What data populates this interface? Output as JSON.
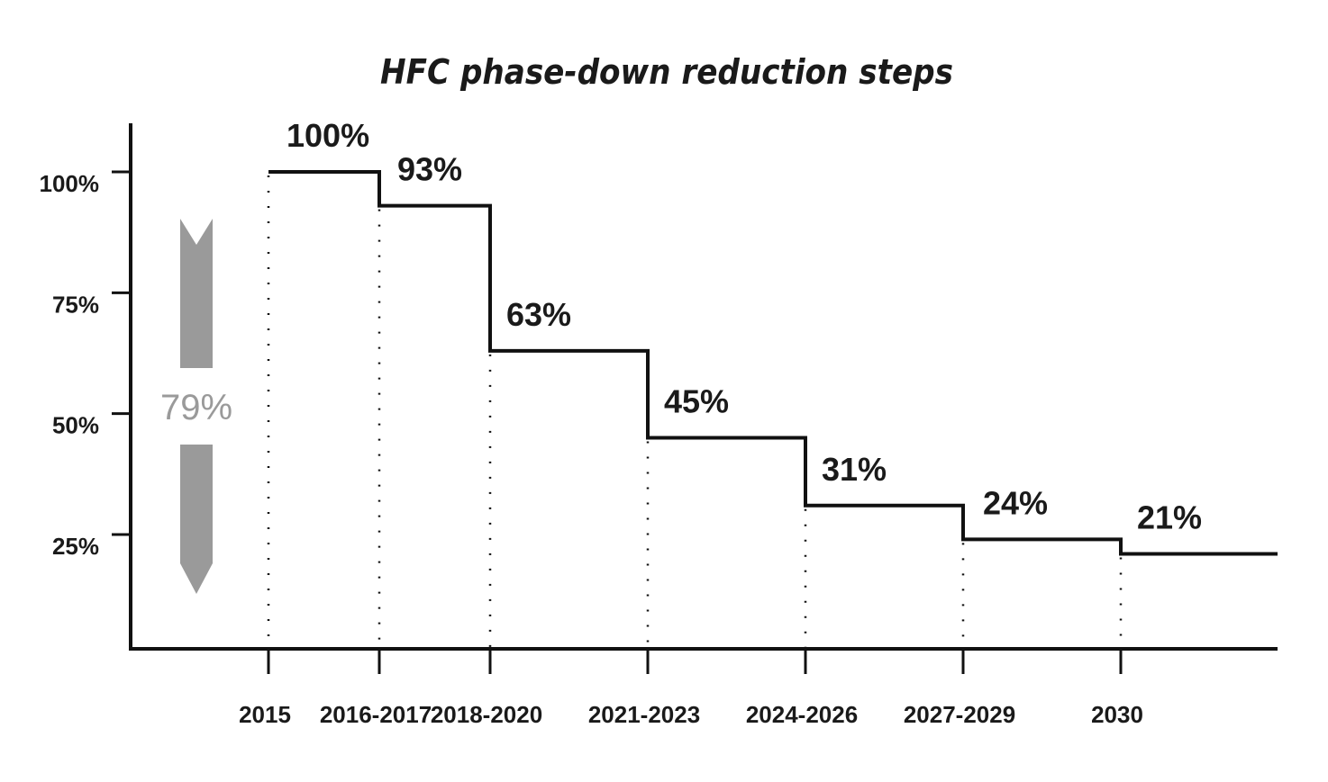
{
  "chart_data": {
    "type": "line",
    "step": true,
    "title": "HFC phase-down reduction steps",
    "xlabel": "",
    "ylabel": "",
    "categories": [
      "2015",
      "2016-2017",
      "2018-2020",
      "2021-2023",
      "2024-2026",
      "2027-2029",
      "2030"
    ],
    "values": [
      100,
      93,
      63,
      45,
      31,
      24,
      21
    ],
    "value_labels": [
      "100%",
      "93%",
      "63%",
      "45%",
      "31%",
      "24%",
      "21%"
    ],
    "yticks": [
      100,
      75,
      50,
      25
    ],
    "ytick_labels": [
      "100%",
      "75%",
      "50%",
      "25%"
    ],
    "ylim": [
      0,
      110
    ],
    "grid": false,
    "annotation": {
      "text": "79%",
      "kind": "downward-arrow"
    },
    "colors": {
      "line": "#111111",
      "axis": "#111111",
      "arrow": "#9a9a9a",
      "guides": "#111111"
    }
  }
}
